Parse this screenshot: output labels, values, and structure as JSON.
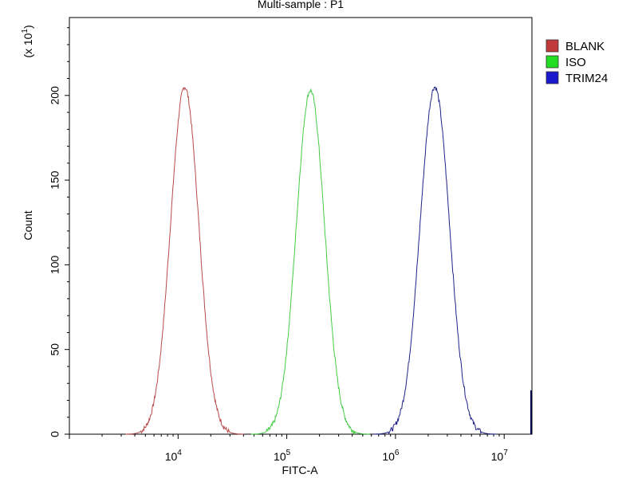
{
  "chart_data": {
    "type": "line",
    "title": "Multi-sample : P1",
    "xlabel": "FITC-A",
    "ylabel": "Count",
    "y_multiplier_label": "(x 10",
    "y_multiplier_exp": "1",
    "x_scale": "log",
    "xlim": [
      1000,
      18000000
    ],
    "ylim": [
      0,
      246
    ],
    "y_ticks": [
      0,
      50,
      100,
      150,
      200
    ],
    "y_tick_labels": [
      "0",
      "50",
      "100",
      "150",
      "200"
    ],
    "x_ticks": [
      {
        "value": 10000,
        "base": "10",
        "exp": "4"
      },
      {
        "value": 100000,
        "base": "10",
        "exp": "5"
      },
      {
        "value": 1000000,
        "base": "10",
        "exp": "6"
      },
      {
        "value": 10000000,
        "base": "10",
        "exp": "7"
      }
    ],
    "grid": false,
    "legend_position": "top-right",
    "series": [
      {
        "name": "BLANK",
        "color": "#c0393b",
        "line_color": "#b84a4a",
        "peak_x": 11500,
        "peak_y": 205,
        "spread_log10": 0.13
      },
      {
        "name": "ISO",
        "color": "#22dd22",
        "line_color": "#44cc44",
        "peak_x": 165000,
        "peak_y": 203,
        "spread_log10": 0.13
      },
      {
        "name": "TRIM24",
        "color": "#1a1acc",
        "line_color": "#222288",
        "peak_x": 2300000,
        "peak_y": 205,
        "spread_log10": 0.135
      }
    ]
  }
}
